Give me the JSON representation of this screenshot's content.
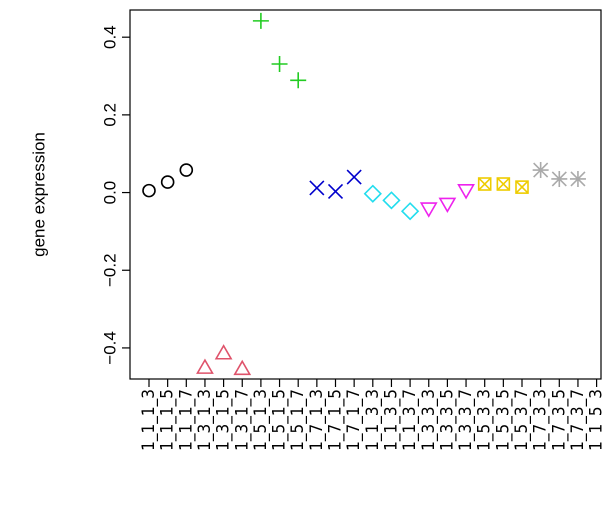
{
  "chart_data": {
    "type": "scatter",
    "title": "",
    "xlabel": "",
    "ylabel": "gene expression",
    "ylim": [
      -0.48,
      0.47
    ],
    "yticks": [
      -0.4,
      -0.2,
      0.0,
      0.2,
      0.4
    ],
    "ytick_labels": [
      "−0.4",
      "−0.2",
      "0.0",
      "0.2",
      "0.4"
    ],
    "grid": false,
    "legend": "none",
    "x_tick_labels": [
      "1_1_1_3",
      "1_1_1_5",
      "1_1_1_7",
      "1_3_1_3",
      "1_3_1_5",
      "1_3_1_7",
      "1_5_1_3",
      "1_5_1_5",
      "1_5_1_7",
      "1_7_1_3",
      "1_7_1_5",
      "1_7_1_7",
      "1_1_3_3",
      "1_1_3_5",
      "1_1_3_7",
      "1_3_3_3",
      "1_3_3_5",
      "1_3_3_7",
      "1_5_3_3",
      "1_5_3_5",
      "1_5_3_7",
      "1_7_3_3",
      "1_7_3_5",
      "1_7_3_7",
      "1_1_5_3"
    ],
    "series": [
      {
        "marker": "circle",
        "color": "#000000",
        "x": [
          1,
          2,
          3
        ],
        "y": [
          0.005,
          0.027,
          0.058
        ]
      },
      {
        "marker": "triangle",
        "color": "#DF536B",
        "x": [
          4,
          5,
          6
        ],
        "y": [
          -0.452,
          -0.415,
          -0.455
        ]
      },
      {
        "marker": "plus",
        "color": "#22CC22",
        "x": [
          7,
          8,
          9
        ],
        "y": [
          0.442,
          0.331,
          0.289
        ]
      },
      {
        "marker": "cross",
        "color": "#0000CC",
        "x": [
          10,
          11,
          12
        ],
        "y": [
          0.012,
          0.003,
          0.04
        ]
      },
      {
        "marker": "diamond",
        "color": "#22DDEE",
        "x": [
          13,
          14,
          15
        ],
        "y": [
          -0.003,
          -0.02,
          -0.048
        ]
      },
      {
        "marker": "triangle-down",
        "color": "#EE22EE",
        "x": [
          16,
          17,
          18
        ],
        "y": [
          -0.04,
          -0.028,
          0.007
        ]
      },
      {
        "marker": "boxed-x",
        "color": "#EECC00",
        "x": [
          19,
          20,
          21
        ],
        "y": [
          0.022,
          0.022,
          0.014
        ]
      },
      {
        "marker": "asterisk",
        "color": "#AAAAAA",
        "x": [
          22,
          23,
          24
        ],
        "y": [
          0.058,
          0.035,
          0.035
        ]
      }
    ]
  }
}
